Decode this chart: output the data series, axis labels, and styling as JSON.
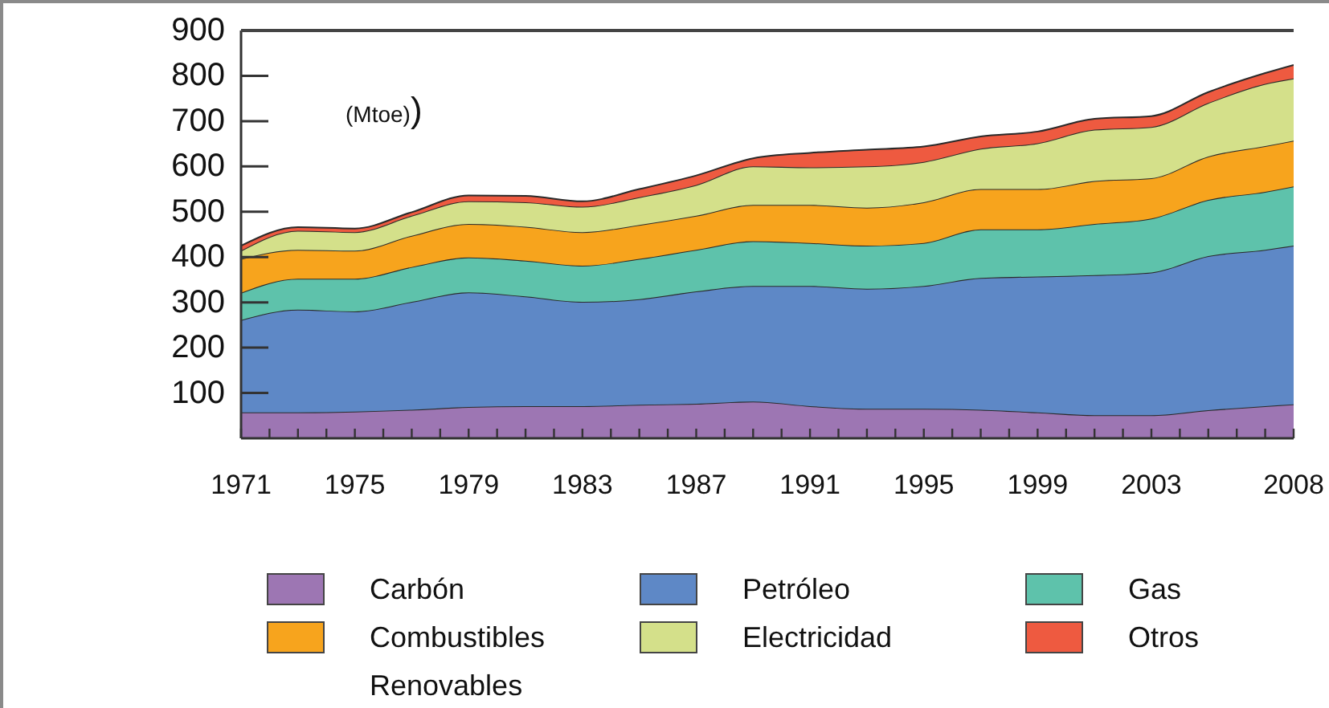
{
  "chart_data": {
    "type": "area",
    "stacked": true,
    "ylabel": "(Mtoe))",
    "legend": "bottom",
    "x": [
      1971,
      1973,
      1975,
      1977,
      1979,
      1981,
      1983,
      1985,
      1987,
      1989,
      1991,
      1993,
      1995,
      1997,
      1999,
      2001,
      2003,
      2005,
      2007,
      2008
    ],
    "xlim": [
      1971,
      2008
    ],
    "xticks": [
      1971,
      {
        "value": 1972,
        "label": null
      },
      {
        "value": 1973,
        "label": null
      },
      {
        "value": 1974,
        "label": null
      },
      1975,
      {
        "value": 1976,
        "label": null
      },
      {
        "value": 1977,
        "label": null
      },
      {
        "value": 1978,
        "label": null
      },
      1979,
      {
        "value": 1980,
        "label": null
      },
      {
        "value": 1981,
        "label": null
      },
      {
        "value": 1982,
        "label": null
      },
      1983,
      {
        "value": 1984,
        "label": null
      },
      {
        "value": 1985,
        "label": null
      },
      {
        "value": 1986,
        "label": null
      },
      1987,
      {
        "value": 1988,
        "label": null
      },
      {
        "value": 1989,
        "label": null
      },
      {
        "value": 1990,
        "label": null
      },
      1991,
      {
        "value": 1992,
        "label": null
      },
      {
        "value": 1993,
        "label": null
      },
      {
        "value": 1994,
        "label": null
      },
      1995,
      {
        "value": 1996,
        "label": null
      },
      {
        "value": 1997,
        "label": null
      },
      {
        "value": 1998,
        "label": null
      },
      1999,
      {
        "value": 2000,
        "label": null
      },
      {
        "value": 2001,
        "label": null
      },
      {
        "value": 2002,
        "label": null
      },
      2003,
      {
        "value": 2004,
        "label": null
      },
      {
        "value": 2005,
        "label": null
      },
      {
        "value": 2006,
        "label": null
      },
      {
        "value": 2007,
        "label": null
      },
      2008
    ],
    "ylim": [
      0,
      900
    ],
    "yticks": [
      100,
      200,
      300,
      400,
      500,
      600,
      700,
      800,
      900
    ],
    "series": [
      {
        "name": "Carbón",
        "color": "#9d76b3",
        "values": [
          57,
          57,
          59,
          63,
          69,
          71,
          71,
          74,
          76,
          81,
          71,
          65,
          65,
          63,
          57,
          51,
          51,
          62,
          71,
          75
        ]
      },
      {
        "name": "Petróleo",
        "color": "#5e88c6",
        "values": [
          204,
          227,
          221,
          238,
          253,
          242,
          230,
          233,
          248,
          255,
          265,
          265,
          271,
          291,
          300,
          309,
          315,
          340,
          345,
          350
        ]
      },
      {
        "name": "Gas",
        "color": "#5ec2ab",
        "values": [
          60,
          68,
          72,
          77,
          77,
          79,
          80,
          89,
          92,
          99,
          95,
          95,
          95,
          107,
          104,
          113,
          119,
          124,
          128,
          131
        ]
      },
      {
        "name": "Combustibles Renovables",
        "color": "#f7a41d",
        "values": [
          75,
          64,
          62,
          69,
          74,
          75,
          74,
          75,
          75,
          80,
          84,
          84,
          90,
          89,
          89,
          95,
          89,
          96,
          101,
          101
        ]
      },
      {
        "name": "Electricidad",
        "color": "#d4e08a",
        "values": [
          18,
          42,
          41,
          44,
          50,
          54,
          56,
          61,
          68,
          85,
          83,
          91,
          89,
          89,
          101,
          113,
          113,
          118,
          137,
          137
        ]
      },
      {
        "name": "Otros",
        "color": "#ee5a40",
        "values": [
          11,
          8,
          8,
          8,
          13,
          14,
          12,
          18,
          21,
          18,
          32,
          37,
          34,
          27,
          26,
          24,
          24,
          24,
          24,
          30
        ]
      }
    ]
  }
}
